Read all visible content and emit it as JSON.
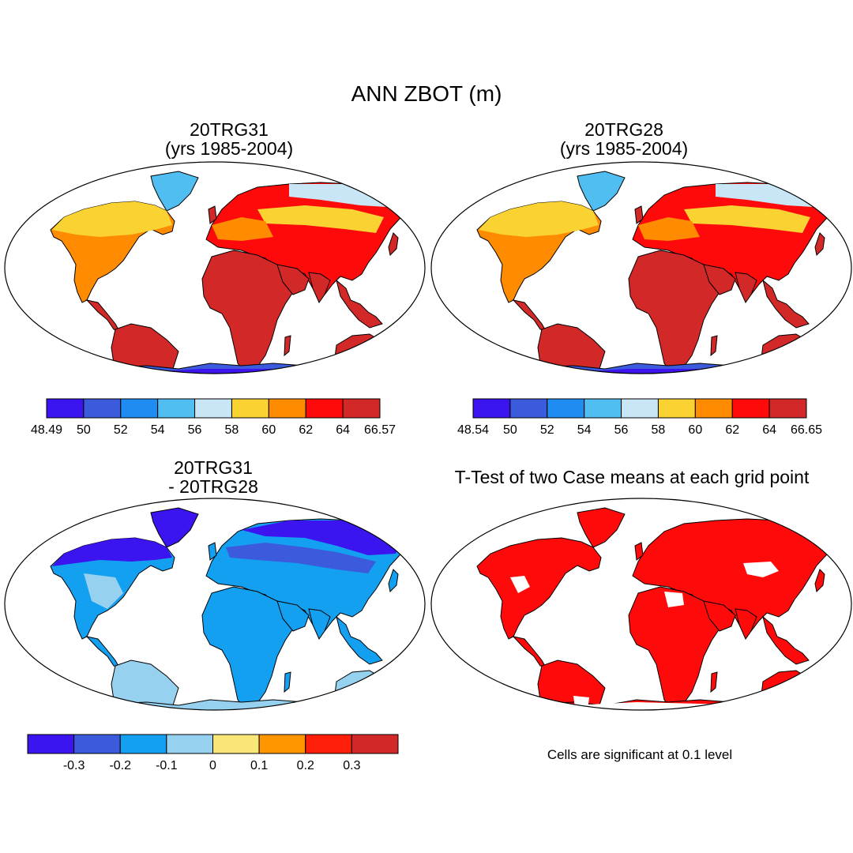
{
  "title": "ANN ZBOT (m)",
  "panels": [
    {
      "id": "case1",
      "title_line1": "20TRG31",
      "title_line2": "(yrs 1985-2004)",
      "colorbar": {
        "colors": [
          "#3c14f0",
          "#3c5adc",
          "#1e8cf0",
          "#50bef0",
          "#c8e6f5",
          "#fad232",
          "#ff8c00",
          "#ff0a0a",
          "#d22828"
        ],
        "labels": [
          "48.49",
          "50",
          "52",
          "54",
          "56",
          "58",
          "60",
          "62",
          "64",
          "66.57"
        ]
      }
    },
    {
      "id": "case2",
      "title_line1": "20TRG28",
      "title_line2": "(yrs 1985-2004)",
      "colorbar": {
        "colors": [
          "#3c14f0",
          "#3c5adc",
          "#1e8cf0",
          "#50bef0",
          "#c8e6f5",
          "#fad232",
          "#ff8c00",
          "#ff0a0a",
          "#d22828"
        ],
        "labels": [
          "48.54",
          "50",
          "52",
          "54",
          "56",
          "58",
          "60",
          "62",
          "64",
          "66.65"
        ]
      }
    },
    {
      "id": "difference",
      "title_line1": "20TRG31",
      "title_line2": "- 20TRG28",
      "colorbar": {
        "colors": [
          "#3c14f0",
          "#3c5adc",
          "#14a0f0",
          "#96d2f0",
          "#fae678",
          "#ff9600",
          "#ff1e0a",
          "#d22828"
        ],
        "labels": [
          "-0.3",
          "-0.2",
          "-0.1",
          "0",
          "0.1",
          "0.2",
          "0.3"
        ]
      }
    },
    {
      "id": "ttest",
      "title": "T-Test of two Case means at each grid point",
      "significance_note": "Cells are significant at 0.1 level",
      "fill_color": "#ff0a0a"
    }
  ]
}
